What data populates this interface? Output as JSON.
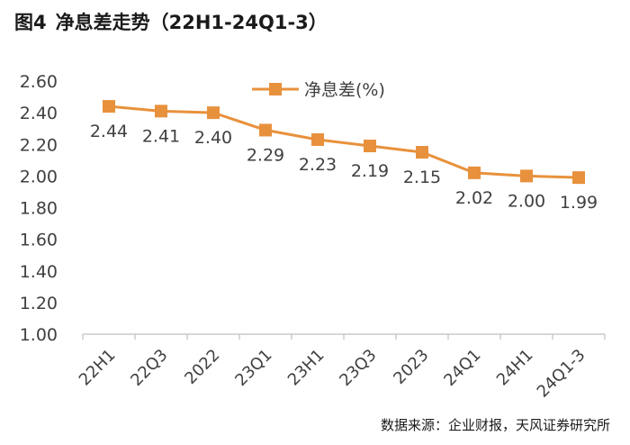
{
  "figure": {
    "number": "图4",
    "title": "净息差走势（22H1-24Q1-3）",
    "source": "数据来源：企业财报，天风证券研究所"
  },
  "chart_data": {
    "type": "line",
    "title": "净息差走势（22H1-24Q1-3）",
    "categories": [
      "22H1",
      "22Q3",
      "2022",
      "23Q1",
      "23H1",
      "23Q3",
      "2023",
      "24Q1",
      "24H1",
      "24Q1-3"
    ],
    "series": [
      {
        "name": "净息差(%)",
        "values": [
          2.44,
          2.41,
          2.4,
          2.29,
          2.23,
          2.19,
          2.15,
          2.02,
          2.0,
          1.99
        ],
        "labels": [
          "2.44",
          "2.41",
          "2.40",
          "2.29",
          "2.23",
          "2.19",
          "2.15",
          "2.02",
          "2.00",
          "1.99"
        ],
        "color": "#E8913C"
      }
    ],
    "y_ticks": [
      "1.00",
      "1.20",
      "1.40",
      "1.60",
      "1.80",
      "2.00",
      "2.20",
      "2.40",
      "2.60"
    ],
    "ylim": [
      1.0,
      2.6
    ],
    "xlabel": "",
    "ylabel": "",
    "grid": false,
    "legend_position": "top-center",
    "axis_color": "#BFBFBF",
    "text_color": "#404040"
  }
}
